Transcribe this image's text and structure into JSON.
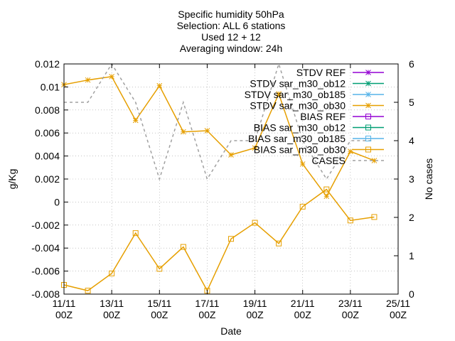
{
  "chart_data": {
    "type": "line",
    "title_lines": [
      "Specific humidity 50hPa",
      "Selection: ALL      6 stations",
      "Used 12 + 12",
      "Averaging window: 24h"
    ],
    "xlabel": "Date",
    "ylabel": "g/Kg",
    "y2label": "No cases",
    "x_ticks": [
      {
        "x": 0,
        "label1": "11/11",
        "label2": "00Z"
      },
      {
        "x": 2,
        "label1": "13/11",
        "label2": "00Z"
      },
      {
        "x": 4,
        "label1": "15/11",
        "label2": "00Z"
      },
      {
        "x": 6,
        "label1": "17/11",
        "label2": "00Z"
      },
      {
        "x": 8,
        "label1": "19/11",
        "label2": "00Z"
      },
      {
        "x": 10,
        "label1": "21/11",
        "label2": "00Z"
      },
      {
        "x": 12,
        "label1": "23/11",
        "label2": "00Z"
      },
      {
        "x": 14,
        "label1": "25/11",
        "label2": "00Z"
      }
    ],
    "xlim": [
      0,
      14
    ],
    "ylim": [
      -0.008,
      0.012
    ],
    "y_ticks": [
      {
        "v": -0.008,
        "label": "-0.008"
      },
      {
        "v": -0.006,
        "label": "-0.006"
      },
      {
        "v": -0.004,
        "label": "-0.004"
      },
      {
        "v": -0.002,
        "label": "-0.002"
      },
      {
        "v": 0,
        "label": "0"
      },
      {
        "v": 0.002,
        "label": "0.002"
      },
      {
        "v": 0.004,
        "label": "0.004"
      },
      {
        "v": 0.006,
        "label": "0.006"
      },
      {
        "v": 0.008,
        "label": "0.008"
      },
      {
        "v": 0.01,
        "label": "0.01"
      },
      {
        "v": 0.012,
        "label": "0.012"
      }
    ],
    "y2lim": [
      0,
      6
    ],
    "y2_ticks": [
      {
        "v": 0,
        "label": "0"
      },
      {
        "v": 1,
        "label": "1"
      },
      {
        "v": 2,
        "label": "2"
      },
      {
        "v": 3,
        "label": "3"
      },
      {
        "v": 4,
        "label": "4"
      },
      {
        "v": 5,
        "label": "5"
      },
      {
        "v": 6,
        "label": "6"
      }
    ],
    "grid": true,
    "legend_position": "top-right",
    "x": [
      0,
      1,
      2,
      3,
      4,
      5,
      6,
      7,
      8,
      9,
      10,
      11,
      12,
      13
    ],
    "series": [
      {
        "name": "STDV REF",
        "color": "#9400d3",
        "marker": "star",
        "dash": "solid",
        "axis": "y1",
        "values": null
      },
      {
        "name": "STDV sar_m30_ob12",
        "color": "#009e73",
        "marker": "star",
        "dash": "solid",
        "axis": "y1",
        "values": null
      },
      {
        "name": "STDV sar_m30_ob185",
        "color": "#56b4e9",
        "marker": "star",
        "dash": "solid",
        "axis": "y1",
        "values": null
      },
      {
        "name": "STDV sar_m30_ob30",
        "color": "#e69f00",
        "marker": "star",
        "dash": "solid",
        "axis": "y1",
        "values": [
          0.0102,
          0.0106,
          0.0109,
          0.0071,
          0.0101,
          0.0061,
          0.0062,
          0.0041,
          0.0047,
          0.0094,
          0.0033,
          0.0005,
          0.0044,
          0.0036
        ]
      },
      {
        "name": "BIAS REF",
        "color": "#9400d3",
        "marker": "square",
        "dash": "solid",
        "axis": "y1",
        "values": null
      },
      {
        "name": "BIAS sar_m30_ob12",
        "color": "#009e73",
        "marker": "square",
        "dash": "solid",
        "axis": "y1",
        "values": null
      },
      {
        "name": "BIAS sar_m30_ob185",
        "color": "#56b4e9",
        "marker": "square",
        "dash": "solid",
        "axis": "y1",
        "values": null
      },
      {
        "name": "BIAS sar_m30_ob30",
        "color": "#e69f00",
        "marker": "square",
        "dash": "solid",
        "axis": "y1",
        "values": [
          -0.0072,
          -0.0077,
          -0.0062,
          -0.0027,
          -0.0058,
          -0.0039,
          -0.0077,
          -0.0032,
          -0.0018,
          -0.0036,
          -0.0004,
          0.0011,
          -0.0016,
          -0.0013
        ]
      },
      {
        "name": "CASES",
        "color": "#a0a0a0",
        "marker": "none",
        "dash": "dashed",
        "axis": "y2",
        "values": [
          5,
          5,
          6,
          5,
          3,
          5,
          3,
          4,
          4,
          6,
          4,
          3,
          4,
          4
        ]
      }
    ]
  }
}
